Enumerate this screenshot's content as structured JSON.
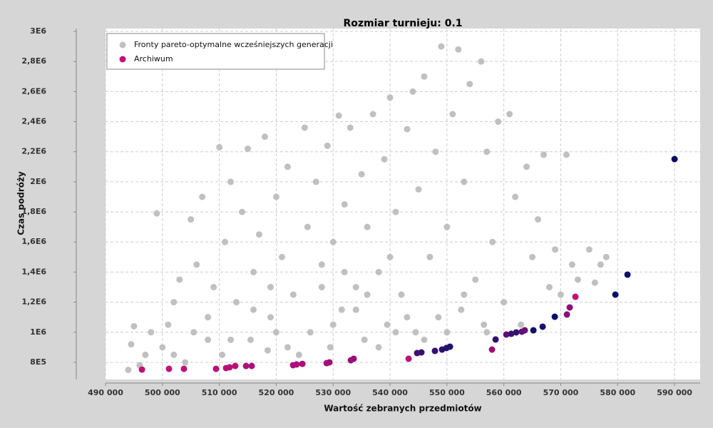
{
  "chart_data": {
    "type": "scatter",
    "title": "Rozmiar turnieju: 0.1",
    "x_label": "Wartość zebranych przedmiotów",
    "y_label": "Czas podróży",
    "xlim": [
      490000,
      594500
    ],
    "ylim": [
      686000,
      3019000
    ],
    "xticks": [
      {
        "value": 490000,
        "label": "490 000"
      },
      {
        "value": 500000,
        "label": "500 000"
      },
      {
        "value": 510000,
        "label": "510 000"
      },
      {
        "value": 520000,
        "label": "520 000"
      },
      {
        "value": 530000,
        "label": "530 000"
      },
      {
        "value": 540000,
        "label": "540 000"
      },
      {
        "value": 550000,
        "label": "550 000"
      },
      {
        "value": 560000,
        "label": "560 000"
      },
      {
        "value": 570000,
        "label": "570 000"
      },
      {
        "value": 580000,
        "label": "580 000"
      },
      {
        "value": 590000,
        "label": "590 000"
      }
    ],
    "yticks": [
      {
        "value": 800000,
        "label": "8E5"
      },
      {
        "value": 1000000,
        "label": "1E6"
      },
      {
        "value": 1200000,
        "label": "1,2E6"
      },
      {
        "value": 1400000,
        "label": "1,4E6"
      },
      {
        "value": 1600000,
        "label": "1,6E6"
      },
      {
        "value": 1800000,
        "label": "1,8E6"
      },
      {
        "value": 2000000,
        "label": "2E6"
      },
      {
        "value": 2200000,
        "label": "2,2E6"
      },
      {
        "value": 2400000,
        "label": "2,4E6"
      },
      {
        "value": 2600000,
        "label": "2,6E6"
      },
      {
        "value": 2800000,
        "label": "2,8E6"
      },
      {
        "value": 3000000,
        "label": "3E6"
      }
    ],
    "grid": true,
    "legend_position": "top-left",
    "series": [
      {
        "name": "Fronty pareto-optymalne wcześniejszych generacji",
        "color": "#c0c0c0",
        "x": [
          494000,
          494500,
          495000,
          496000,
          497000,
          498000,
          499000,
          500000,
          501000,
          502000,
          503000,
          504000,
          505000,
          505500,
          506000,
          507000,
          508000,
          509000,
          510000,
          510500,
          511000,
          512000,
          513000,
          514000,
          515000,
          515500,
          516000,
          517000,
          518000,
          518500,
          519000,
          520000,
          521000,
          522000,
          523000,
          524000,
          525000,
          525500,
          526000,
          527000,
          528000,
          529000,
          529500,
          530000,
          531000,
          531500,
          532000,
          533000,
          534000,
          535000,
          535500,
          536000,
          537000,
          538000,
          539000,
          539500,
          540000,
          541000,
          542000,
          543000,
          544000,
          544500,
          545000,
          546000,
          547000,
          548000,
          548500,
          549000,
          550000,
          551000,
          552000,
          552500,
          553000,
          554000,
          555000,
          556000,
          556500,
          557000,
          558000,
          559000,
          560000,
          561000,
          562000,
          563000,
          564000,
          565000,
          566000,
          567000,
          568000,
          569000,
          570000,
          571000,
          572000,
          573000,
          575000,
          576000,
          577000,
          578000,
          512000,
          520000,
          522000,
          530000,
          534000,
          538000,
          541000,
          543000,
          546000,
          550000,
          553000,
          557000,
          528000,
          532000,
          536000,
          540000,
          519000,
          516000,
          508000,
          502000
        ],
        "values": [
          750000,
          920000,
          1040000,
          780000,
          850000,
          1000000,
          1790000,
          900000,
          1050000,
          1200000,
          1350000,
          800000,
          1750000,
          1000000,
          1450000,
          1900000,
          1100000,
          1300000,
          2230000,
          850000,
          1600000,
          2000000,
          1200000,
          1800000,
          2220000,
          950000,
          1400000,
          1650000,
          2300000,
          880000,
          1100000,
          1900000,
          1500000,
          2100000,
          1250000,
          850000,
          2360000,
          1700000,
          1000000,
          2000000,
          1450000,
          2240000,
          900000,
          1600000,
          2440000,
          1150000,
          1850000,
          2360000,
          1300000,
          2050000,
          950000,
          1700000,
          2450000,
          1400000,
          2150000,
          1050000,
          2560000,
          1800000,
          1250000,
          2350000,
          2600000,
          1000000,
          1950000,
          2700000,
          1500000,
          2200000,
          1100000,
          2900000,
          1700000,
          2450000,
          2880000,
          1150000,
          2000000,
          2650000,
          1350000,
          2800000,
          1050000,
          2200000,
          1600000,
          2400000,
          1200000,
          2450000,
          1900000,
          1050000,
          2100000,
          1500000,
          1750000,
          2180000,
          1300000,
          1550000,
          1250000,
          2180000,
          1450000,
          1350000,
          1550000,
          1330000,
          1450000,
          1500000,
          950000,
          1000000,
          900000,
          1050000,
          1150000,
          900000,
          1000000,
          1100000,
          950000,
          1000000,
          1250000,
          1000000,
          1300000,
          1400000,
          1250000,
          1500000,
          1300000,
          1150000,
          950000,
          850000
        ]
      },
      {
        "name": "Archiwum",
        "color": "#c0107a",
        "x": [
          496400,
          501150,
          503780,
          509420,
          511180,
          511800,
          512800,
          514690,
          515690,
          522960,
          523580,
          524590,
          528850,
          529350,
          533110,
          533610,
          543260,
          544760,
          545510,
          547890,
          549140,
          549900,
          550530,
          557920,
          558550,
          560430,
          561300,
          562180,
          563180,
          563680,
          565190,
          566820,
          568950,
          571080,
          571580,
          572580,
          579600,
          581730,
          590000
        ],
        "values": [
          752000,
          757000,
          757000,
          757000,
          762000,
          767000,
          776000,
          776000,
          776000,
          781000,
          786000,
          790000,
          795000,
          800000,
          814000,
          824000,
          824000,
          862000,
          866000,
          876000,
          885000,
          895000,
          904000,
          885000,
          952000,
          985000,
          990000,
          999000,
          1004000,
          1013000,
          1013000,
          1037000,
          1103000,
          1118000,
          1165000,
          1236000,
          1250000,
          1383000,
          2151000
        ],
        "colors": [
          "#c0107a",
          "#c0107a",
          "#c0107a",
          "#b81078",
          "#b81078",
          "#b81078",
          "#b81078",
          "#b00f78",
          "#b00f78",
          "#ac0f78",
          "#ac0f78",
          "#a80f78",
          "#a80f78",
          "#a00f78",
          "#a00f78",
          "#980e78",
          "#c0107a",
          "#401070",
          "#3c1070",
          "#341070",
          "#2c1070",
          "#281070",
          "#241070",
          "#9c1078",
          "#300f6c",
          "#5c1078",
          "#3a1070",
          "#341070",
          "#5c1078",
          "#6a1078",
          "#10106a",
          "#18106a",
          "#0e0e68",
          "#8a1078",
          "#8a1078",
          "#c0107a",
          "#0c0c66",
          "#0c0c66",
          "#0a0a60"
        ]
      }
    ]
  }
}
